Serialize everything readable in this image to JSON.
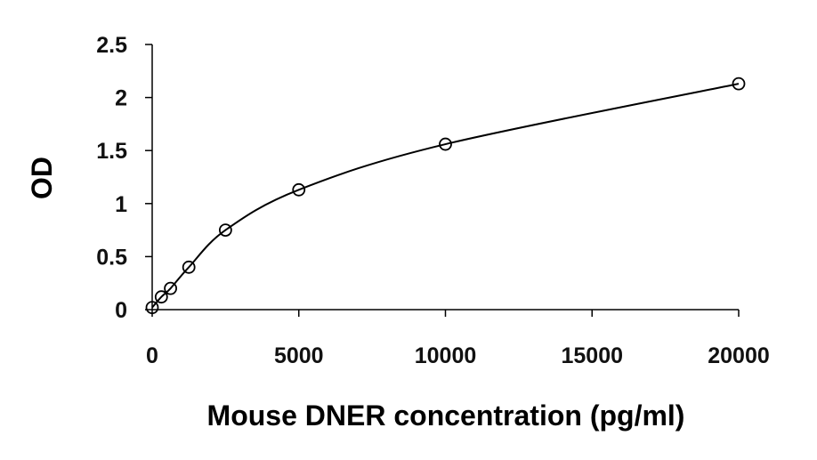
{
  "chart_data": {
    "type": "scatter",
    "title": "",
    "xlabel": "Mouse DNER concentration (pg/ml)",
    "ylabel": "OD",
    "xlim": [
      0,
      20000
    ],
    "ylim": [
      0,
      2.5
    ],
    "x_ticks": [
      0,
      5000,
      10000,
      15000,
      20000
    ],
    "x_tick_labels": [
      "0",
      "5000",
      "10000",
      "15000",
      "20000"
    ],
    "y_ticks": [
      0,
      0.5,
      1,
      1.5,
      2,
      2.5
    ],
    "y_tick_labels": [
      "0",
      "0.5",
      "1",
      "1.5",
      "2",
      "2.5"
    ],
    "grid": false,
    "legend": "none",
    "marker": "open-circle",
    "trendline": "smooth-curve",
    "series": [
      {
        "x": [
          0,
          312.5,
          625,
          1250,
          2500,
          5000,
          10000,
          20000
        ],
        "y": [
          0.02,
          0.12,
          0.2,
          0.4,
          0.75,
          1.13,
          1.56,
          2.13
        ]
      }
    ],
    "colors": {
      "line": "#000000",
      "marker": "#000000",
      "axis": "#000000"
    }
  }
}
